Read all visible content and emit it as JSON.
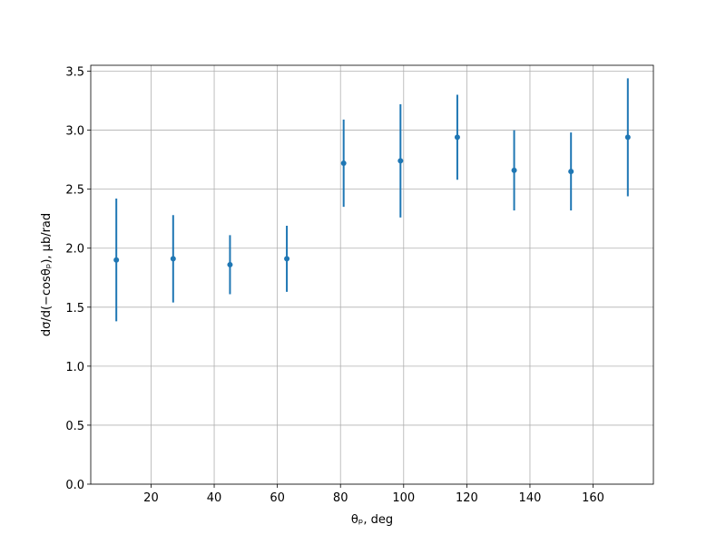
{
  "chart_data": {
    "type": "errorbar",
    "x_label": "θₚ, deg",
    "y_label": "dσ/d(−cosθₚ), μb/rad",
    "x": [
      9,
      27,
      45,
      63,
      81,
      99,
      117,
      135,
      153,
      171
    ],
    "series": [
      {
        "color": "#1f77b4",
        "values": [
          1.9,
          1.91,
          1.86,
          1.91,
          2.72,
          2.74,
          2.94,
          2.66,
          2.65,
          2.94
        ],
        "errors": [
          0.52,
          0.37,
          0.25,
          0.28,
          0.37,
          0.48,
          0.36,
          0.34,
          0.33,
          0.5
        ]
      }
    ],
    "xlim": [
      0.9,
      179.1
    ],
    "ylim": [
      0,
      3.55
    ],
    "xticks": [
      20,
      40,
      60,
      80,
      100,
      120,
      140,
      160
    ],
    "yticks": [
      {
        "value": 0,
        "label": "0.0"
      },
      {
        "value": 0.5,
        "label": "0.5"
      },
      {
        "value": 1,
        "label": "1.0"
      },
      {
        "value": 1.5,
        "label": "1.5"
      },
      {
        "value": 2,
        "label": "2.0"
      },
      {
        "value": 2.5,
        "label": "2.5"
      },
      {
        "value": 3,
        "label": "3.0"
      },
      {
        "value": 3.5,
        "label": "3.5"
      }
    ],
    "grid": true
  }
}
